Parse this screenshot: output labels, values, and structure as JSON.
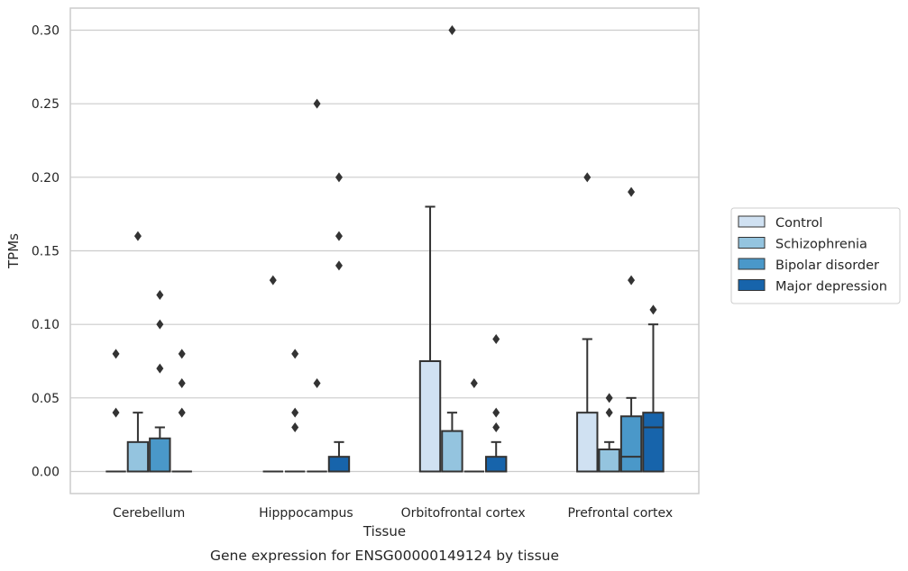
{
  "chart_data": {
    "type": "boxplot",
    "title": "",
    "caption": "Gene expression for ENSG00000149124 by tissue",
    "xlabel": "Tissue",
    "ylabel": "TPMs",
    "ylim": [
      -0.015,
      0.315
    ],
    "yticks": [
      0.0,
      0.05,
      0.1,
      0.15,
      0.2,
      0.25,
      0.3
    ],
    "ytick_labels": [
      "0.00",
      "0.05",
      "0.10",
      "0.15",
      "0.20",
      "0.25",
      "0.30"
    ],
    "grid": "horizontal",
    "legend_position": "right",
    "categories": [
      "Cerebellum",
      "Hipppocampus",
      "Orbitofrontal cortex",
      "Prefrontal cortex"
    ],
    "series": [
      {
        "name": "Control",
        "color": "#d0e1f2",
        "boxes": [
          {
            "q1": 0.0,
            "median": 0.0,
            "q3": 0.0,
            "whisker_low": 0.0,
            "whisker_high": 0.0,
            "outliers": [
              0.04,
              0.08
            ]
          },
          {
            "q1": 0.0,
            "median": 0.0,
            "q3": 0.0,
            "whisker_low": 0.0,
            "whisker_high": 0.0,
            "outliers": [
              0.13
            ]
          },
          {
            "q1": 0.0,
            "median": 0.0,
            "q3": 0.075,
            "whisker_low": 0.0,
            "whisker_high": 0.18,
            "outliers": []
          },
          {
            "q1": 0.0,
            "median": 0.0,
            "q3": 0.04,
            "whisker_low": 0.0,
            "whisker_high": 0.09,
            "outliers": [
              0.2
            ]
          }
        ]
      },
      {
        "name": "Schizophrenia",
        "color": "#94c4df",
        "boxes": [
          {
            "q1": 0.0,
            "median": 0.0,
            "q3": 0.02,
            "whisker_low": 0.0,
            "whisker_high": 0.04,
            "outliers": [
              0.16
            ]
          },
          {
            "q1": 0.0,
            "median": 0.0,
            "q3": 0.0,
            "whisker_low": 0.0,
            "whisker_high": 0.0,
            "outliers": [
              0.03,
              0.04,
              0.08
            ]
          },
          {
            "q1": 0.0,
            "median": 0.0,
            "q3": 0.0275,
            "whisker_low": 0.0,
            "whisker_high": 0.04,
            "outliers": [
              0.3
            ]
          },
          {
            "q1": 0.0,
            "median": 0.0,
            "q3": 0.015,
            "whisker_low": 0.0,
            "whisker_high": 0.02,
            "outliers": [
              0.04,
              0.05
            ]
          }
        ]
      },
      {
        "name": "Bipolar disorder",
        "color": "#4a98c9",
        "boxes": [
          {
            "q1": 0.0,
            "median": 0.0,
            "q3": 0.0225,
            "whisker_low": 0.0,
            "whisker_high": 0.03,
            "outliers": [
              0.07,
              0.1,
              0.12
            ]
          },
          {
            "q1": 0.0,
            "median": 0.0,
            "q3": 0.0,
            "whisker_low": 0.0,
            "whisker_high": 0.0,
            "outliers": [
              0.06,
              0.25
            ]
          },
          {
            "q1": 0.0,
            "median": 0.0,
            "q3": 0.0,
            "whisker_low": 0.0,
            "whisker_high": 0.0,
            "outliers": [
              0.06
            ]
          },
          {
            "q1": 0.0,
            "median": 0.01,
            "q3": 0.0375,
            "whisker_low": 0.0,
            "whisker_high": 0.05,
            "outliers": [
              0.13,
              0.19
            ]
          }
        ]
      },
      {
        "name": "Major depression",
        "color": "#1764ab",
        "boxes": [
          {
            "q1": 0.0,
            "median": 0.0,
            "q3": 0.0,
            "whisker_low": 0.0,
            "whisker_high": 0.0,
            "outliers": [
              0.04,
              0.06,
              0.08
            ]
          },
          {
            "q1": 0.0,
            "median": 0.0,
            "q3": 0.01,
            "whisker_low": 0.0,
            "whisker_high": 0.02,
            "outliers": [
              0.14,
              0.16,
              0.2
            ]
          },
          {
            "q1": 0.0,
            "median": 0.0,
            "q3": 0.01,
            "whisker_low": 0.0,
            "whisker_high": 0.02,
            "outliers": [
              0.03,
              0.04,
              0.09
            ]
          },
          {
            "q1": 0.0,
            "median": 0.03,
            "q3": 0.04,
            "whisker_low": 0.0,
            "whisker_high": 0.1,
            "outliers": [
              0.11
            ]
          }
        ]
      }
    ]
  }
}
